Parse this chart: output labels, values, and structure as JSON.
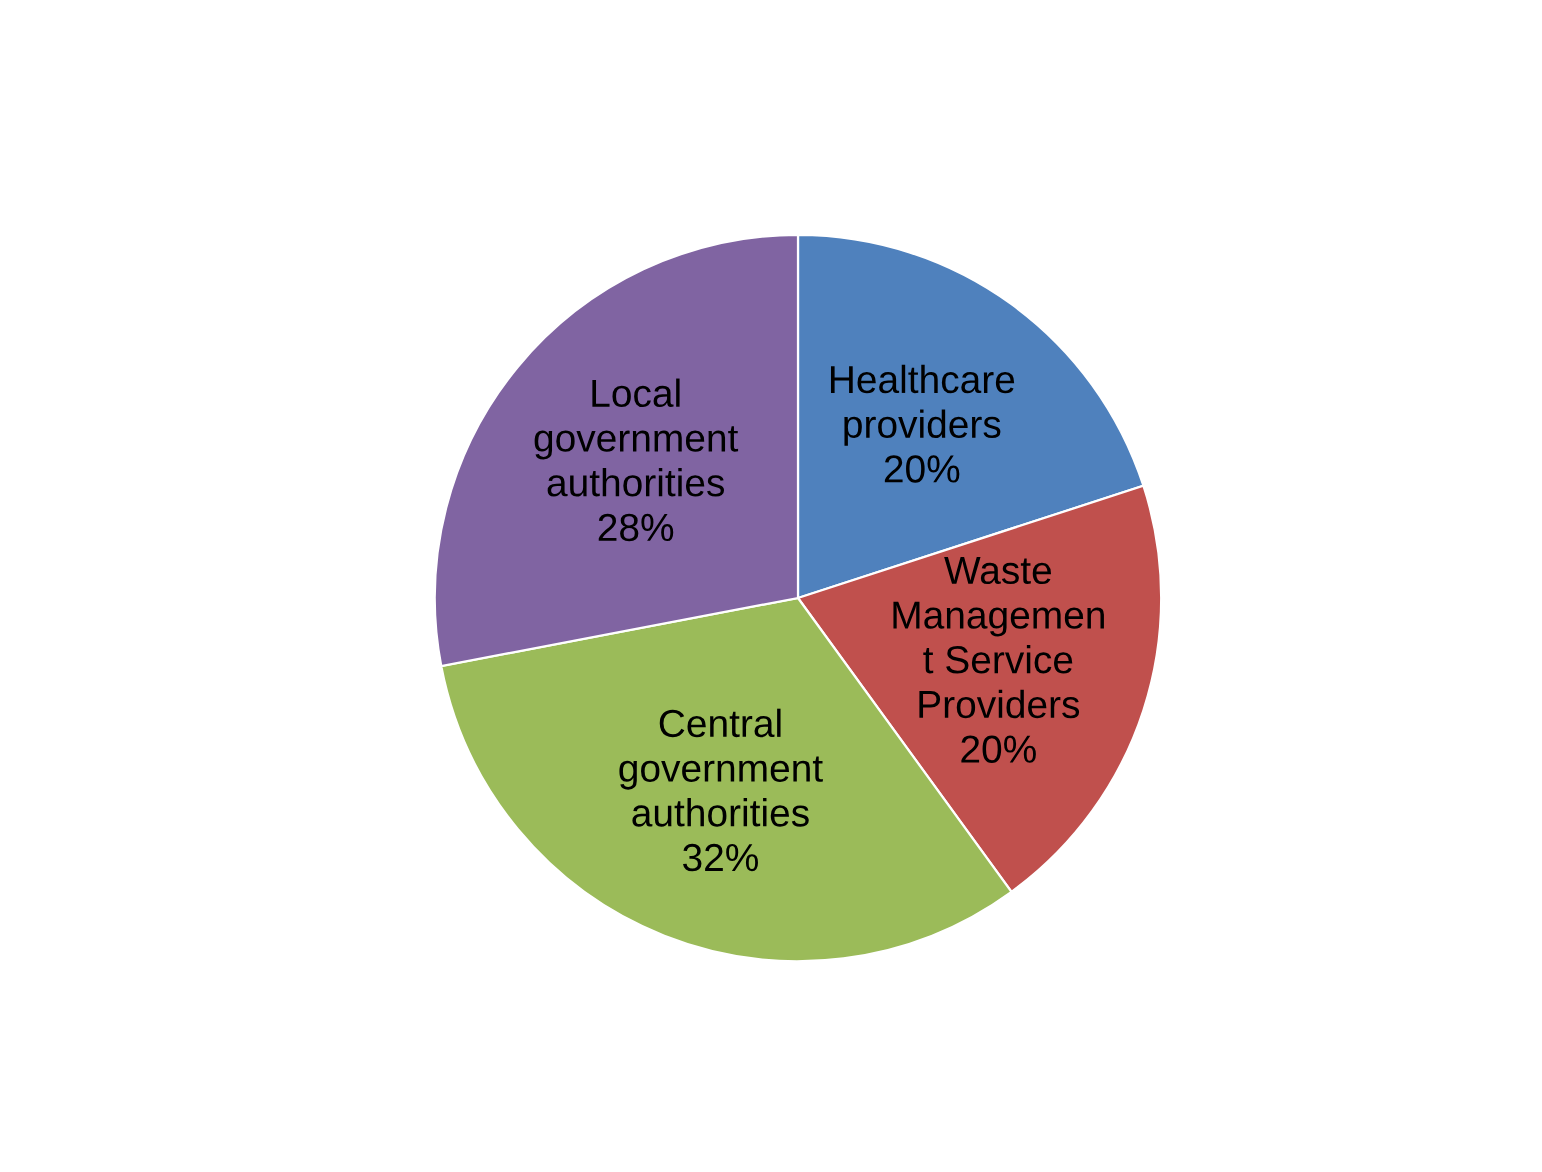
{
  "chart_data": {
    "type": "pie",
    "categories": [
      "Healthcare\nproviders",
      "Waste\nManagemen\nt Service\nProviders",
      "Central\ngovernment\nauthorities",
      "Local\ngovernment\nauthorities"
    ],
    "values": [
      20,
      20,
      32,
      28
    ],
    "value_labels": [
      "20%",
      "20%",
      "32%",
      "28%"
    ],
    "colors": [
      "#4f81bd",
      "#c0504d",
      "#9bbb59",
      "#8064a2"
    ],
    "legend": false
  }
}
